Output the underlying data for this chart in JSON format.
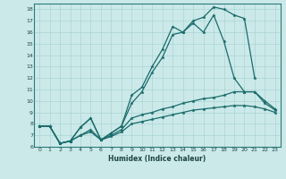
{
  "xlabel": "Humidex (Indice chaleur)",
  "xlim": [
    -0.5,
    23.5
  ],
  "ylim": [
    6,
    18.5
  ],
  "xticks": [
    0,
    1,
    2,
    3,
    4,
    5,
    6,
    7,
    8,
    9,
    10,
    11,
    12,
    13,
    14,
    15,
    16,
    17,
    18,
    19,
    20,
    21,
    22,
    23
  ],
  "yticks": [
    6,
    7,
    8,
    9,
    10,
    11,
    12,
    13,
    14,
    15,
    16,
    17,
    18
  ],
  "background_color": "#cce9e9",
  "grid_color": "#aad4d4",
  "line_color": "#1a6b6b",
  "line1_x": [
    0,
    1,
    2,
    3,
    4,
    5,
    6,
    7,
    8,
    9,
    10,
    11,
    12,
    13,
    14,
    15,
    16,
    17,
    18,
    19,
    20,
    21
  ],
  "line1_y": [
    7.8,
    7.8,
    6.3,
    6.5,
    7.7,
    8.5,
    6.6,
    7.2,
    7.8,
    10.5,
    11.2,
    13.0,
    14.5,
    16.5,
    16.0,
    17.0,
    17.3,
    18.2,
    18.0,
    17.5,
    17.2,
    12.0
  ],
  "line2_x": [
    0,
    1,
    2,
    3,
    4,
    5,
    6,
    7,
    8,
    9,
    10,
    11,
    12,
    13,
    14,
    15,
    16,
    17,
    18,
    19,
    20,
    21,
    22,
    23
  ],
  "line2_y": [
    7.8,
    7.8,
    6.3,
    6.5,
    7.7,
    8.5,
    6.6,
    7.2,
    7.8,
    9.8,
    10.8,
    12.5,
    13.8,
    15.8,
    16.0,
    16.8,
    16.0,
    17.5,
    15.2,
    12.0,
    10.8,
    10.8,
    9.8,
    9.2
  ],
  "line3_x": [
    0,
    1,
    2,
    3,
    4,
    5,
    6,
    7,
    8,
    9,
    10,
    11,
    12,
    13,
    14,
    15,
    16,
    17,
    18,
    19,
    20,
    21,
    22,
    23
  ],
  "line3_y": [
    7.8,
    7.8,
    6.3,
    6.5,
    7.0,
    7.5,
    6.6,
    7.0,
    7.5,
    8.5,
    8.8,
    9.0,
    9.3,
    9.5,
    9.8,
    10.0,
    10.2,
    10.3,
    10.5,
    10.8,
    10.8,
    10.8,
    10.0,
    9.3
  ],
  "line4_x": [
    0,
    1,
    2,
    3,
    4,
    5,
    6,
    7,
    8,
    9,
    10,
    11,
    12,
    13,
    14,
    15,
    16,
    17,
    18,
    19,
    20,
    21,
    22,
    23
  ],
  "line4_y": [
    7.8,
    7.8,
    6.3,
    6.5,
    7.0,
    7.3,
    6.6,
    6.9,
    7.3,
    8.0,
    8.2,
    8.4,
    8.6,
    8.8,
    9.0,
    9.2,
    9.3,
    9.4,
    9.5,
    9.6,
    9.6,
    9.5,
    9.3,
    9.0
  ]
}
